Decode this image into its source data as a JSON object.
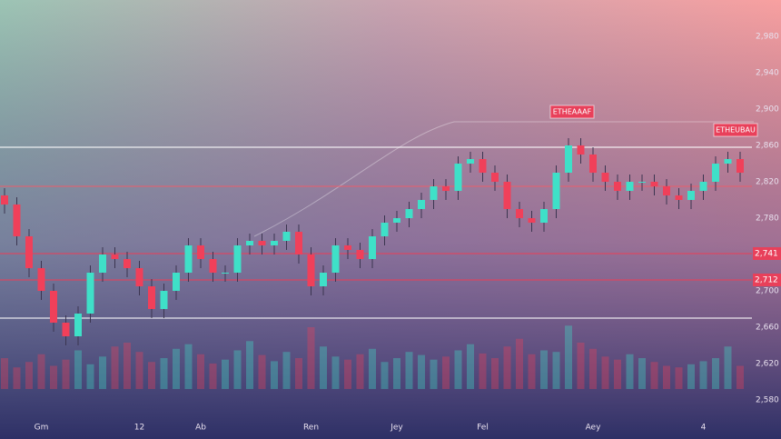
{
  "chart_data": {
    "type": "candlestick",
    "categories": [
      null,
      null,
      null,
      "Gm",
      null,
      null,
      null,
      null,
      null,
      null,
      null,
      "12",
      null,
      null,
      null,
      null,
      "Ab",
      null,
      null,
      null,
      null,
      null,
      null,
      null,
      null,
      "Ren",
      null,
      null,
      null,
      null,
      null,
      null,
      "Jey",
      null,
      null,
      null,
      null,
      null,
      null,
      "Fel",
      null,
      null,
      null,
      null,
      null,
      null,
      null,
      null,
      "Aey",
      null,
      null,
      null,
      null,
      null,
      null,
      null,
      null,
      "4",
      null,
      null,
      null
    ],
    "open": [
      2805,
      2795,
      2760,
      2725,
      2700,
      2665,
      2650,
      2675,
      2720,
      2740,
      2735,
      2725,
      2705,
      2680,
      2700,
      2720,
      2750,
      2735,
      2720,
      2720,
      2750,
      2755,
      2750,
      2755,
      2765,
      2740,
      2705,
      2720,
      2750,
      2745,
      2735,
      2760,
      2775,
      2780,
      2790,
      2800,
      2815,
      2810,
      2840,
      2845,
      2830,
      2820,
      2790,
      2780,
      2775,
      2790,
      2830,
      2860,
      2850,
      2830,
      2820,
      2810,
      2820,
      2820,
      2815,
      2805,
      2800,
      2810,
      2820,
      2840,
      2845
    ],
    "high": [
      2813,
      2803,
      2768,
      2733,
      2708,
      2673,
      2683,
      2728,
      2748,
      2748,
      2743,
      2733,
      2713,
      2708,
      2728,
      2758,
      2758,
      2743,
      2728,
      2758,
      2763,
      2763,
      2763,
      2773,
      2773,
      2748,
      2728,
      2758,
      2758,
      2753,
      2768,
      2783,
      2788,
      2798,
      2808,
      2823,
      2823,
      2848,
      2853,
      2853,
      2838,
      2828,
      2798,
      2788,
      2798,
      2838,
      2868,
      2868,
      2858,
      2838,
      2828,
      2828,
      2828,
      2828,
      2823,
      2813,
      2818,
      2828,
      2848,
      2853,
      2853
    ],
    "low": [
      2785,
      2750,
      2715,
      2690,
      2655,
      2640,
      2640,
      2665,
      2710,
      2725,
      2715,
      2695,
      2670,
      2670,
      2690,
      2710,
      2725,
      2710,
      2710,
      2710,
      2740,
      2740,
      2740,
      2745,
      2730,
      2695,
      2695,
      2710,
      2735,
      2725,
      2725,
      2750,
      2765,
      2770,
      2780,
      2790,
      2800,
      2800,
      2830,
      2820,
      2810,
      2780,
      2770,
      2765,
      2765,
      2780,
      2820,
      2840,
      2820,
      2810,
      2800,
      2800,
      2810,
      2805,
      2795,
      2790,
      2790,
      2800,
      2810,
      2830,
      2820
    ],
    "close": [
      2795,
      2760,
      2725,
      2700,
      2665,
      2650,
      2675,
      2720,
      2740,
      2735,
      2725,
      2705,
      2680,
      2700,
      2720,
      2750,
      2735,
      2720,
      2720,
      2750,
      2755,
      2750,
      2755,
      2765,
      2740,
      2705,
      2720,
      2750,
      2745,
      2735,
      2760,
      2775,
      2780,
      2790,
      2800,
      2815,
      2810,
      2840,
      2845,
      2830,
      2820,
      2790,
      2780,
      2775,
      2790,
      2830,
      2860,
      2850,
      2830,
      2820,
      2810,
      2820,
      2820,
      2815,
      2805,
      2800,
      2810,
      2820,
      2840,
      2845,
      2830
    ],
    "volume": [
      40,
      28,
      35,
      45,
      30,
      38,
      50,
      32,
      42,
      55,
      60,
      48,
      35,
      40,
      52,
      58,
      45,
      33,
      38,
      50,
      62,
      44,
      36,
      48,
      40,
      80,
      55,
      42,
      38,
      45,
      52,
      35,
      40,
      48,
      44,
      38,
      42,
      50,
      58,
      46,
      40,
      55,
      65,
      45,
      50,
      48,
      82,
      60,
      52,
      42,
      38,
      45,
      40,
      35,
      30,
      28,
      32,
      36,
      40,
      55,
      30
    ],
    "volume_lim": [
      0,
      100
    ],
    "up_color": "#3fe0c8",
    "down_color": "#f0405a",
    "ylim": [
      2570,
      3000
    ],
    "yticks": [
      {
        "value": 2980,
        "label": "2,980"
      },
      {
        "value": 2940,
        "label": "2,940"
      },
      {
        "value": 2900,
        "label": "2,900"
      },
      {
        "value": 2860,
        "label": "2,860"
      },
      {
        "value": 2820,
        "label": "2,820"
      },
      {
        "value": 2780,
        "label": "2,780"
      },
      {
        "value": 2740,
        "label": "2,740"
      },
      {
        "value": 2700,
        "label": "2,700"
      },
      {
        "value": 2660,
        "label": "2,660"
      },
      {
        "value": 2620,
        "label": "2,620"
      },
      {
        "value": 2580,
        "label": "2,580"
      }
    ],
    "levels": [
      {
        "value": 2858,
        "color": "#ffffff"
      },
      {
        "value": 2815,
        "color": "#e8606e"
      },
      {
        "value": 2741,
        "color": "#e8405a",
        "label": "2,741"
      },
      {
        "value": 2712,
        "color": "#e8405a",
        "label": "2,712"
      },
      {
        "value": 2670,
        "color": "#ffffff"
      }
    ],
    "annotations": [
      {
        "text": "ETHEAAAF"
      },
      {
        "text": "ETHEUBAU"
      }
    ]
  }
}
